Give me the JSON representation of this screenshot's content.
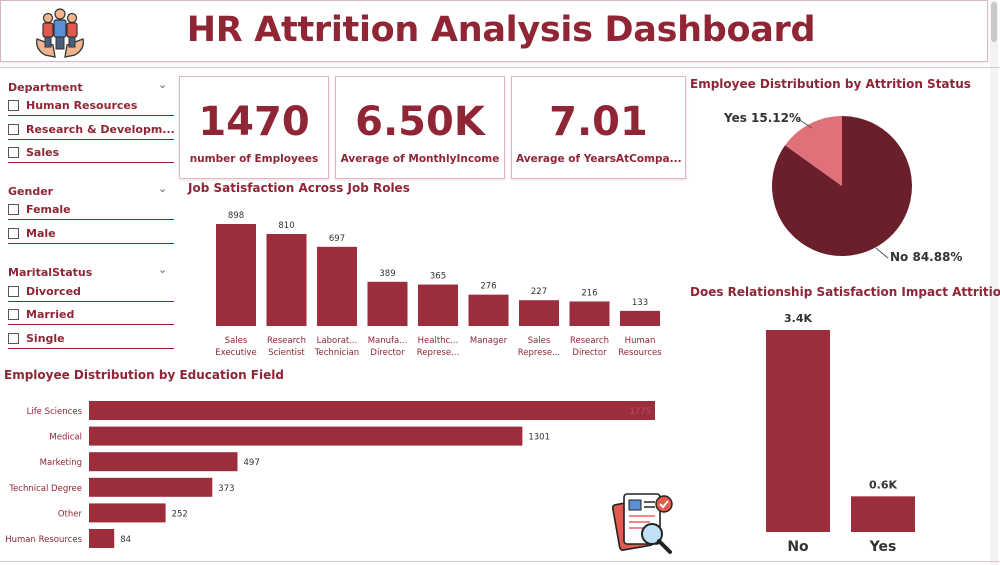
{
  "title": "HR Attrition Analysis Dashboard",
  "colors": {
    "primary": "#9b2d3d",
    "dark": "#6b1f2b",
    "light": "#e0707a",
    "text": "#8f2535"
  },
  "slicers": [
    {
      "title": "Department",
      "items": [
        "Human Resources",
        "Research & Developm...",
        "Sales"
      ]
    },
    {
      "title": "Gender",
      "items": [
        "Female",
        "Male"
      ]
    },
    {
      "title": "MaritalStatus",
      "items": [
        "Divorced",
        "Married",
        "Single"
      ]
    }
  ],
  "kpis": [
    {
      "value": "1470",
      "label": "number of Employees"
    },
    {
      "value": "6.50K",
      "label": "Average of MonthlyIncome"
    },
    {
      "value": "7.01",
      "label": "Average of YearsAtCompa..."
    }
  ],
  "chart_data": [
    {
      "title": "Job Satisfaction Across Job Roles",
      "type": "bar",
      "categories": [
        [
          "Sales",
          "Executive"
        ],
        [
          "Research",
          "Scientist"
        ],
        [
          "Laborat...",
          "Technician"
        ],
        [
          "Manufa...",
          "Director"
        ],
        [
          "Healthc...",
          "Represe..."
        ],
        [
          "Manager"
        ],
        [
          "Sales",
          "Represe..."
        ],
        [
          "Research",
          "Director"
        ],
        [
          "Human",
          "Resources"
        ]
      ],
      "values": [
        898,
        810,
        697,
        389,
        365,
        276,
        227,
        216,
        133
      ],
      "data_labels": [
        "898",
        "810",
        "697",
        "389",
        "365",
        "276",
        "227",
        "216",
        "133"
      ],
      "ylim": [
        0,
        1000
      ]
    },
    {
      "title": "Employee Distribution by Attrition Status",
      "type": "pie",
      "slices": [
        {
          "name": "No",
          "value": 84.88,
          "label": "No 84.88%",
          "color": "#6b1f2b"
        },
        {
          "name": "Yes",
          "value": 15.12,
          "label": "Yes 15.12%",
          "color": "#e0707a"
        }
      ]
    },
    {
      "title": "Employee Distribution by Education Field",
      "type": "bar",
      "orientation": "horizontal",
      "categories": [
        "Life Sciences",
        "Medical",
        "Marketing",
        "Technical Degree",
        "Other",
        "Human Resources"
      ],
      "values": [
        606,
        464,
        159,
        132,
        82,
        27
      ],
      "data_labels": [
        "1775",
        "1301",
        "497",
        "373",
        "252",
        "84"
      ],
      "xlim": [
        0,
        606
      ]
    },
    {
      "title": "Does Relationship Satisfaction Impact Attrition?",
      "type": "bar",
      "categories": [
        "No",
        "Yes"
      ],
      "values": [
        3.4,
        0.6
      ],
      "data_labels": [
        "3.4K",
        "0.6K"
      ],
      "ylim": [
        0,
        3.4
      ]
    }
  ]
}
